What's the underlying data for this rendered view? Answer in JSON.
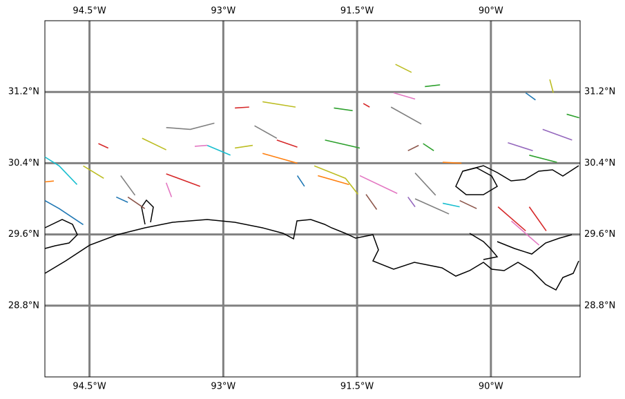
{
  "chart_data": {
    "type": "map",
    "xlim": [
      -95,
      -89
    ],
    "ylim": [
      28,
      32
    ],
    "grid": true,
    "grid_color": "#808080",
    "xticks": [
      {
        "value": -94.5,
        "label": "94.5°W"
      },
      {
        "value": -93,
        "label": "93°W"
      },
      {
        "value": -91.5,
        "label": "91.5°W"
      },
      {
        "value": -90,
        "label": "90°W"
      }
    ],
    "yticks": [
      {
        "value": 31.2,
        "label": "31.2°N"
      },
      {
        "value": 30.4,
        "label": "30.4°N"
      },
      {
        "value": 29.6,
        "label": "29.6°N"
      },
      {
        "value": 28.8,
        "label": "28.8°N"
      }
    ],
    "tracks": [
      {
        "color": "#bcbd22",
        "lon": [
          -91.07,
          -90.89
        ],
        "lat": [
          31.51,
          31.42
        ]
      },
      {
        "color": "#2ca02c",
        "lon": [
          -90.74,
          -90.57
        ],
        "lat": [
          31.26,
          31.28
        ]
      },
      {
        "color": "#bcbd22",
        "lon": [
          -92.56,
          -92.19
        ],
        "lat": [
          31.09,
          31.03
        ]
      },
      {
        "color": "#d62728",
        "lon": [
          -92.87,
          -92.71
        ],
        "lat": [
          31.02,
          31.03
        ]
      },
      {
        "color": "#2ca02c",
        "lon": [
          -91.76,
          -91.55
        ],
        "lat": [
          31.02,
          30.99
        ]
      },
      {
        "color": "#d62728",
        "lon": [
          -91.43,
          -91.36
        ],
        "lat": [
          31.07,
          31.03
        ]
      },
      {
        "color": "#e377c2",
        "lon": [
          -91.09,
          -90.85
        ],
        "lat": [
          31.19,
          31.12
        ]
      },
      {
        "color": "#7f7f7f",
        "lon": [
          -91.12,
          -90.78
        ],
        "lat": [
          31.03,
          30.84
        ]
      },
      {
        "color": "#7f7f7f",
        "lon": [
          -93.64,
          -93.37,
          -93.1
        ],
        "lat": [
          30.8,
          30.78,
          30.85
        ]
      },
      {
        "color": "#bcbd22",
        "lon": [
          -93.91,
          -93.64
        ],
        "lat": [
          30.68,
          30.55
        ]
      },
      {
        "color": "#d62728",
        "lon": [
          -94.4,
          -94.29
        ],
        "lat": [
          30.62,
          30.57
        ]
      },
      {
        "color": "#17becf",
        "lon": [
          -93.18,
          -92.92
        ],
        "lat": [
          30.6,
          30.49
        ]
      },
      {
        "color": "#e377c2",
        "lon": [
          -93.32,
          -93.18
        ],
        "lat": [
          30.59,
          30.6
        ]
      },
      {
        "color": "#7f7f7f",
        "lon": [
          -92.65,
          -92.4
        ],
        "lat": [
          30.82,
          30.68
        ]
      },
      {
        "color": "#d62728",
        "lon": [
          -92.4,
          -92.17
        ],
        "lat": [
          30.66,
          30.58
        ]
      },
      {
        "color": "#bcbd22",
        "lon": [
          -92.87,
          -92.67
        ],
        "lat": [
          30.57,
          30.6
        ]
      },
      {
        "color": "#2ca02c",
        "lon": [
          -91.86,
          -91.47
        ],
        "lat": [
          30.66,
          30.57
        ]
      },
      {
        "color": "#ff7f0e",
        "lon": [
          -92.56,
          -92.17
        ],
        "lat": [
          30.51,
          30.4
        ]
      },
      {
        "color": "#bcbd22",
        "lon": [
          -91.98,
          -91.63,
          -91.49
        ],
        "lat": [
          30.37,
          30.23,
          30.05
        ]
      },
      {
        "color": "#ff7f0e",
        "lon": [
          -91.94,
          -91.59
        ],
        "lat": [
          30.26,
          30.16
        ]
      },
      {
        "color": "#e377c2",
        "lon": [
          -91.47,
          -91.05
        ],
        "lat": [
          30.26,
          30.06
        ]
      },
      {
        "color": "#8c564b",
        "lon": [
          -91.4,
          -91.28
        ],
        "lat": [
          30.05,
          29.88
        ]
      },
      {
        "color": "#7f7f7f",
        "lon": [
          -90.85,
          -90.62
        ],
        "lat": [
          30.29,
          30.04
        ]
      },
      {
        "color": "#7f7f7f",
        "lon": [
          -90.85,
          -90.47
        ],
        "lat": [
          30.0,
          29.83
        ]
      },
      {
        "color": "#9467bd",
        "lon": [
          -90.93,
          -90.85
        ],
        "lat": [
          30.02,
          29.91
        ]
      },
      {
        "color": "#17becf",
        "lon": [
          -90.54,
          -90.35
        ],
        "lat": [
          29.95,
          29.91
        ]
      },
      {
        "color": "#8c564b",
        "lon": [
          -90.35,
          -90.16
        ],
        "lat": [
          29.98,
          29.89
        ]
      },
      {
        "color": "#1f77b4",
        "lon": [
          -95.0,
          -94.84,
          -94.57
        ],
        "lat": [
          29.98,
          29.89,
          29.71
        ]
      },
      {
        "color": "#17becf",
        "lon": [
          -95.0,
          -94.84,
          -94.64
        ],
        "lat": [
          30.47,
          30.37,
          30.16
        ]
      },
      {
        "color": "#1f77b4",
        "lon": [
          -94.2,
          -94.07
        ],
        "lat": [
          30.02,
          29.96
        ]
      },
      {
        "color": "#8c564b",
        "lon": [
          -94.07,
          -93.88
        ],
        "lat": [
          30.02,
          29.89
        ]
      },
      {
        "color": "#7f7f7f",
        "lon": [
          -94.15,
          -93.99
        ],
        "lat": [
          30.26,
          30.04
        ]
      },
      {
        "color": "#d62728",
        "lon": [
          -93.64,
          -93.26
        ],
        "lat": [
          30.28,
          30.14
        ]
      },
      {
        "color": "#e377c2",
        "lon": [
          -93.64,
          -93.58
        ],
        "lat": [
          30.18,
          30.02
        ]
      },
      {
        "color": "#bcbd22",
        "lon": [
          -94.57,
          -94.34
        ],
        "lat": [
          30.37,
          30.23
        ]
      },
      {
        "color": "#1f77b4",
        "lon": [
          -92.17,
          -92.09
        ],
        "lat": [
          30.26,
          30.14
        ]
      },
      {
        "color": "#d62728",
        "lon": [
          -89.92,
          -89.61
        ],
        "lat": [
          29.91,
          29.64
        ]
      },
      {
        "color": "#d62728",
        "lon": [
          -89.57,
          -89.38
        ],
        "lat": [
          29.91,
          29.64
        ]
      },
      {
        "color": "#e377c2",
        "lon": [
          -89.77,
          -89.46
        ],
        "lat": [
          29.75,
          29.48
        ]
      },
      {
        "color": "#9467bd",
        "lon": [
          -89.81,
          -89.53
        ],
        "lat": [
          30.63,
          30.54
        ]
      },
      {
        "color": "#2ca02c",
        "lon": [
          -89.57,
          -89.26
        ],
        "lat": [
          30.49,
          30.41
        ]
      },
      {
        "color": "#9467bd",
        "lon": [
          -89.42,
          -89.09
        ],
        "lat": [
          30.78,
          30.66
        ]
      },
      {
        "color": "#bcbd22",
        "lon": [
          -89.34,
          -89.3
        ],
        "lat": [
          31.34,
          31.19
        ]
      },
      {
        "color": "#1f77b4",
        "lon": [
          -89.61,
          -89.5
        ],
        "lat": [
          31.19,
          31.11
        ]
      },
      {
        "color": "#2ca02c",
        "lon": [
          -89.15,
          -89.01
        ],
        "lat": [
          30.95,
          30.91
        ]
      },
      {
        "color": "#8c564b",
        "lon": [
          -90.93,
          -90.81
        ],
        "lat": [
          30.54,
          30.6
        ]
      },
      {
        "color": "#2ca02c",
        "lon": [
          -90.76,
          -90.64
        ],
        "lat": [
          30.62,
          30.54
        ]
      },
      {
        "color": "#ff7f0e",
        "lon": [
          -90.54,
          -90.33
        ],
        "lat": [
          30.41,
          30.4
        ]
      },
      {
        "color": "#ff7f0e",
        "lon": [
          -95.0,
          -94.9
        ],
        "lat": [
          30.19,
          30.2
        ]
      }
    ]
  }
}
